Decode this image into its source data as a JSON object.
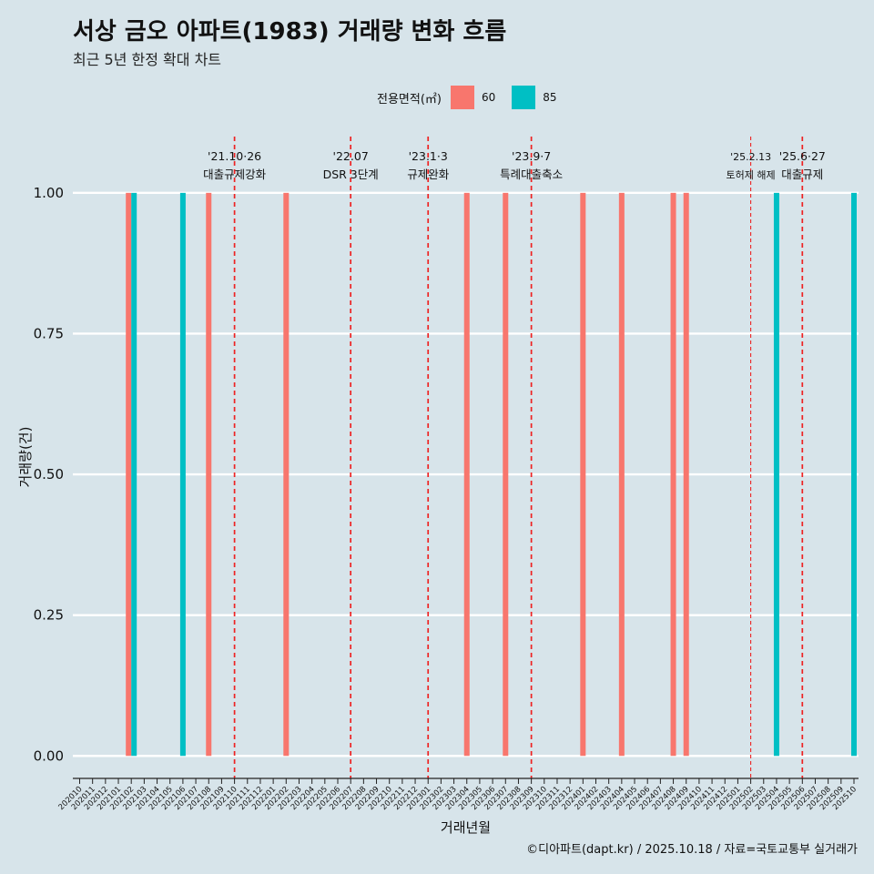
{
  "header": {
    "title": "서상 금오 아파트(1983) 거래량 변화 흐름",
    "subtitle": "최근 5년 한정 확대 차트"
  },
  "legend": {
    "title": "전용면적(㎡)",
    "items": [
      {
        "label": "60",
        "color": "#f8766d"
      },
      {
        "label": "85",
        "color": "#00bfc4"
      }
    ]
  },
  "caption": "©디아파트(dapt.kr) / 2025.10.18 / 자료=국토교통부 실거래가",
  "chart_data": {
    "type": "bar",
    "title": "서상 금오 아파트(1983) 거래량 변화 흐름",
    "subtitle": "최근 5년 한정 확대 차트",
    "xlabel": "거래년월",
    "ylabel": "거래량(건)",
    "ylim": [
      -0.04,
      1.1
    ],
    "yticks": [
      0.0,
      0.25,
      0.5,
      0.75,
      1.0
    ],
    "ytick_labels": [
      "0.00",
      "0.25",
      "0.50",
      "0.75",
      "1.00"
    ],
    "categories": [
      "202010",
      "202011",
      "202012",
      "202101",
      "202102",
      "202103",
      "202104",
      "202105",
      "202106",
      "202107",
      "202108",
      "202109",
      "202110",
      "202111",
      "202112",
      "202201",
      "202202",
      "202203",
      "202204",
      "202205",
      "202206",
      "202207",
      "202208",
      "202209",
      "202210",
      "202211",
      "202212",
      "202301",
      "202302",
      "202303",
      "202304",
      "202305",
      "202306",
      "202307",
      "202308",
      "202309",
      "202310",
      "202311",
      "202312",
      "202401",
      "202402",
      "202403",
      "202404",
      "202405",
      "202406",
      "202407",
      "202408",
      "202409",
      "202410",
      "202411",
      "202412",
      "202501",
      "202502",
      "202503",
      "202504",
      "202505",
      "202506",
      "202507",
      "202508",
      "202509",
      "202510"
    ],
    "series": [
      {
        "name": "60",
        "color": "#f8766d",
        "points": [
          {
            "x": "202102",
            "value": 1
          },
          {
            "x": "202108",
            "value": 1
          },
          {
            "x": "202202",
            "value": 1
          },
          {
            "x": "202304",
            "value": 1
          },
          {
            "x": "202307",
            "value": 1
          },
          {
            "x": "202401",
            "value": 1
          },
          {
            "x": "202404",
            "value": 1
          },
          {
            "x": "202408",
            "value": 1
          },
          {
            "x": "202409",
            "value": 1
          }
        ]
      },
      {
        "name": "85",
        "color": "#00bfc4",
        "points": [
          {
            "x": "202102",
            "value": 1
          },
          {
            "x": "202106",
            "value": 1
          },
          {
            "x": "202504",
            "value": 1
          },
          {
            "x": "202510",
            "value": 1
          }
        ]
      }
    ],
    "annotations": [
      {
        "x": "202110",
        "line1": "'21.10·26",
        "line2": "대출규제강화",
        "style": "dashed"
      },
      {
        "x": "202207",
        "line1": "'22.07",
        "line2": "DSR 3단계",
        "style": "dashed"
      },
      {
        "x": "202301",
        "line1": "'23.1·3",
        "line2": "규제완화",
        "style": "dashed"
      },
      {
        "x": "202309",
        "line1": "'23.9·7",
        "line2": "특례대출축소",
        "style": "dashed"
      },
      {
        "x": "202502",
        "line1": "'25.2.13",
        "line2": "토허제 해제",
        "style": "thin-dashed",
        "small": true
      },
      {
        "x": "202506",
        "line1": "'25.6·27",
        "line2": "대출규제",
        "style": "dashed"
      }
    ]
  }
}
